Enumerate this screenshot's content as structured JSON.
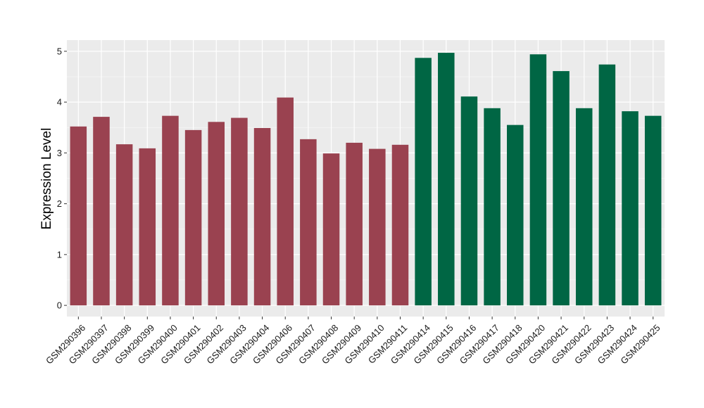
{
  "chart_data": {
    "type": "bar",
    "title": "",
    "xlabel": "",
    "ylabel": "Expression Level",
    "ylim": [
      -0.22,
      5.22
    ],
    "yticks": [
      0,
      1,
      2,
      3,
      4,
      5
    ],
    "grid": true,
    "legend": "none",
    "categories": [
      "GSM290396",
      "GSM290397",
      "GSM290398",
      "GSM290399",
      "GSM290400",
      "GSM290401",
      "GSM290402",
      "GSM290403",
      "GSM290404",
      "GSM290406",
      "GSM290407",
      "GSM290408",
      "GSM290409",
      "GSM290410",
      "GSM290411",
      "GSM290414",
      "GSM290415",
      "GSM290416",
      "GSM290417",
      "GSM290418",
      "GSM290420",
      "GSM290421",
      "GSM290422",
      "GSM290423",
      "GSM290424",
      "GSM290425"
    ],
    "values": [
      3.52,
      3.71,
      3.17,
      3.09,
      3.73,
      3.45,
      3.61,
      3.69,
      3.49,
      4.09,
      3.27,
      2.99,
      3.2,
      3.08,
      3.16,
      4.87,
      4.97,
      4.11,
      3.88,
      3.55,
      4.94,
      4.61,
      3.88,
      4.74,
      3.82,
      3.73
    ],
    "groups": [
      0,
      0,
      0,
      0,
      0,
      0,
      0,
      0,
      0,
      0,
      0,
      0,
      0,
      0,
      0,
      1,
      1,
      1,
      1,
      1,
      1,
      1,
      1,
      1,
      1,
      1
    ],
    "colors": {
      "group_0": "#9a4250",
      "group_1": "#006644",
      "panel_bg": "#ebebeb",
      "grid_major": "#ffffff"
    }
  }
}
